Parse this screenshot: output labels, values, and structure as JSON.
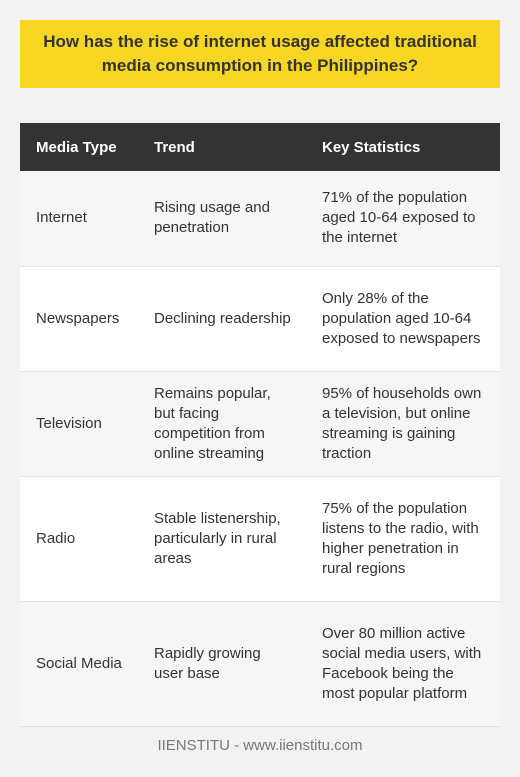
{
  "question": "How has the rise of internet usage affected traditional media consumption in the Philippines?",
  "table": {
    "headers": [
      "Media Type",
      "Trend",
      "Key Statistics"
    ],
    "rows": [
      {
        "media_type": "Internet",
        "trend": "Rising usage and penetration",
        "stat": "71% of the population aged 10-64 exposed to the internet"
      },
      {
        "media_type": "Newspapers",
        "trend": "Declining readership",
        "stat": "Only 28% of the population aged 10-64 exposed to newspapers"
      },
      {
        "media_type": "Television",
        "trend": "Remains popular, but facing competition from online streaming",
        "stat": "95% of households own a television, but online streaming is gaining traction"
      },
      {
        "media_type": "Radio",
        "trend": "Stable listenership, particularly in rural areas",
        "stat": "75% of the population listens to the radio, with higher penetration in rural regions"
      },
      {
        "media_type": "Social Media",
        "trend": "Rapidly growing user base",
        "stat": "Over 80 million active social media users, with Facebook being the most popular platform"
      }
    ]
  },
  "footer": "IIENSTITU - www.iienstitu.com",
  "colors": {
    "banner": "#f7d724",
    "header_bg": "#333333",
    "header_text": "#ffffff",
    "row_alt": "#f6f6f6",
    "background": "#f2f2f2"
  }
}
